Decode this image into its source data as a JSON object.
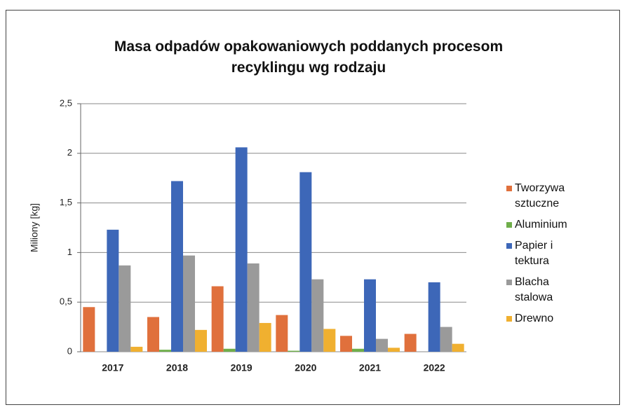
{
  "chart_data": {
    "type": "bar",
    "title": "Masa odpadów opakowaniowych poddanych procesom recyklingu wg rodzaju",
    "y_label": "Miliony [kg]",
    "categories": [
      "2017",
      "2018",
      "2019",
      "2020",
      "2021",
      "2022"
    ],
    "series": [
      {
        "name": "Tworzywa sztuczne",
        "color": "#e0703c",
        "values": [
          0.45,
          0.35,
          0.66,
          0.37,
          0.16,
          0.18
        ]
      },
      {
        "name": "Aluminium",
        "color": "#6fae4a",
        "values": [
          0,
          0.02,
          0.03,
          0.01,
          0.03,
          0
        ]
      },
      {
        "name": "Papier i tektura",
        "color": "#3d67b8",
        "values": [
          1.23,
          1.72,
          2.06,
          1.81,
          0.73,
          0.7
        ]
      },
      {
        "name": "Blacha stalowa",
        "color": "#9a9a9a",
        "values": [
          0.87,
          0.97,
          0.89,
          0.73,
          0.13,
          0.25
        ]
      },
      {
        "name": "Drewno",
        "color": "#f0b030",
        "values": [
          0.05,
          0.22,
          0.29,
          0.23,
          0.04,
          0.08
        ]
      }
    ],
    "ylim": [
      0,
      2.5
    ],
    "yticks": [
      0,
      {
        "value": 0.5,
        "label": "0,5"
      },
      1,
      {
        "value": 1.5,
        "label": "1,5"
      },
      2,
      {
        "value": 2.5,
        "label": "2,5"
      }
    ],
    "grid": true,
    "legend": "right"
  }
}
